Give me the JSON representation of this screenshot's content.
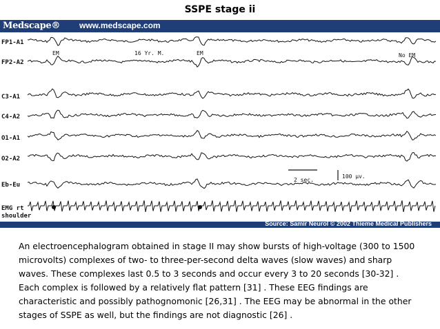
{
  "slide": {
    "title": "SSPE stage ii"
  },
  "figure": {
    "brand": "Medscape®",
    "url": "www.medscape.com",
    "channels": [
      "FP1-A1",
      "FP2-A2",
      "C3-A1",
      "C4-A2",
      "O1-A1",
      "O2-A2",
      "Eb-Eu",
      "EMG rt",
      "shoulder"
    ],
    "annotations": {
      "em_1": "EM",
      "em_2": "EM",
      "no_em": "No EM",
      "age": "16 Yr. M."
    },
    "scale": {
      "time": "2 sec.",
      "amplitude": "100 µv."
    },
    "source": "Source: Samir Neurol © 2002 Thieme Medical Publishers"
  },
  "body": {
    "paragraph": "An electroencephalogram obtained in stage II may show bursts of high-voltage (300 to 1500 microvolts) complexes of two- to three-per-second delta waves (slow waves) and sharp waves. These complexes last 0.5 to 3 seconds and occur every 3 to 20 seconds [30-32] . Each complex is followed by a relatively flat pattern [31] . These EEG findings are characteristic and possibly pathognomonic [26,31] . The EEG may be abnormal in the other stages of SSPE as well, but the findings are not diagnostic [26] ."
  }
}
